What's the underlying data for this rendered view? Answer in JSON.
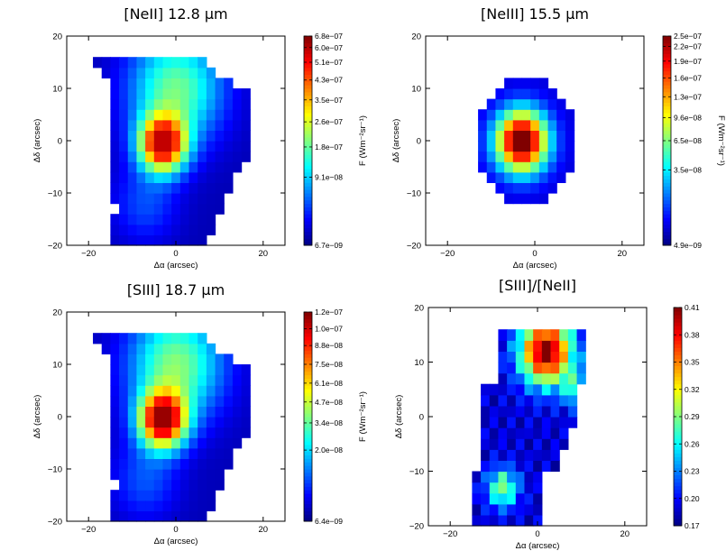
{
  "figure": {
    "panels": [
      {
        "title": "[NeII] 12.8 µm",
        "xlabel": "Δα (arcsec)",
        "ylabel": "Δδ (arcsec)",
        "colorbar_label": ""
      },
      {
        "title": "[NeIII] 15.5 µm",
        "xlabel": "Δα (arcsec)",
        "ylabel": "Δδ (arcsec)",
        "colorbar_label": "F (Wm⁻²sr⁻¹)"
      },
      {
        "title": "[SIII] 18.7 µm",
        "xlabel": "Δα (arcsec)",
        "ylabel": "Δδ (arcsec)",
        "colorbar_label": ""
      },
      {
        "title": "[SIII]/[NeII]",
        "xlabel": "Δα (arcsec)",
        "ylabel": "Δδ (arcsec)",
        "colorbar_label": ""
      }
    ]
  },
  "chart_data": [
    {
      "type": "heatmap",
      "title": "[NeII] 12.8 µm",
      "xlabel": "Δα (arcsec)",
      "ylabel": "Δδ (arcsec)",
      "colormap": "jet",
      "xlim": [
        -25,
        25
      ],
      "ylim": [
        -20,
        20
      ],
      "xticks": [
        -20,
        0,
        20
      ],
      "yticks": [
        -20,
        -10,
        0,
        10,
        20
      ],
      "colorbar": {
        "scale": "sqrt",
        "min": 6.7e-09,
        "max": 6.8e-07,
        "ticks": [
          "6.8e−07",
          "6.0e−07",
          "5.1e−07",
          "4.3e−07",
          "3.5e−07",
          "2.6e−07",
          "1.8e−07",
          "9.1e−08",
          "6.7e−09"
        ]
      },
      "peak": [
        -3,
        0
      ],
      "extent": {
        "x": [
          -16,
          17
        ],
        "y": [
          -20,
          17
        ]
      }
    },
    {
      "type": "heatmap",
      "title": "[NeIII] 15.5 µm",
      "xlabel": "Δα (arcsec)",
      "ylabel": "Δδ (arcsec)",
      "colormap": "jet",
      "xlim": [
        -25,
        25
      ],
      "ylim": [
        -20,
        20
      ],
      "xticks": [
        -20,
        0,
        20
      ],
      "yticks": [
        -20,
        -10,
        0,
        10,
        20
      ],
      "colorbar": {
        "scale": "sqrt",
        "min": 4.9e-09,
        "max": 2.5e-07,
        "ticks": [
          "2.5e−07",
          "2.2e−07",
          "1.9e−07",
          "1.6e−07",
          "1.3e−07",
          "9.6e−08",
          "6.5e−08",
          "3.5e−08",
          "4.9e−09"
        ]
      },
      "peak": [
        -3,
        0
      ],
      "extent": {
        "x": [
          -14,
          9
        ],
        "y": [
          -13,
          13
        ]
      }
    },
    {
      "type": "heatmap",
      "title": "[SIII] 18.7 µm",
      "xlabel": "Δα (arcsec)",
      "ylabel": "Δδ (arcsec)",
      "colormap": "jet",
      "xlim": [
        -25,
        25
      ],
      "ylim": [
        -20,
        20
      ],
      "xticks": [
        -20,
        0,
        20
      ],
      "yticks": [
        -20,
        -10,
        0,
        10,
        20
      ],
      "colorbar": {
        "scale": "sqrt",
        "min": 6.4e-09,
        "max": 1.2e-07,
        "ticks": [
          "1.2e−07",
          "1.0e−07",
          "8.8e−08",
          "7.5e−08",
          "6.1e−08",
          "4.7e−08",
          "3.4e−08",
          "2.0e−08",
          "6.4e−09"
        ]
      },
      "peak": [
        -3,
        0
      ],
      "extent": {
        "x": [
          -16,
          15
        ],
        "y": [
          -18,
          17
        ]
      }
    },
    {
      "type": "heatmap",
      "title": "[SIII]/[NeII]",
      "xlabel": "Δα (arcsec)",
      "ylabel": "Δδ (arcsec)",
      "colormap": "jet",
      "xlim": [
        -25,
        25
      ],
      "ylim": [
        -20,
        20
      ],
      "xticks": [
        -20,
        0,
        20
      ],
      "yticks": [
        -20,
        -10,
        0,
        10,
        20
      ],
      "colorbar": {
        "scale": "linear",
        "min": 0.17,
        "max": 0.41,
        "ticks": [
          "0.41",
          "0.38",
          "0.35",
          "0.32",
          "0.29",
          "0.26",
          "0.23",
          "0.20",
          "0.17"
        ]
      },
      "extent": {
        "x": [
          -14,
          10
        ],
        "y": [
          -18,
          15
        ]
      }
    }
  ]
}
